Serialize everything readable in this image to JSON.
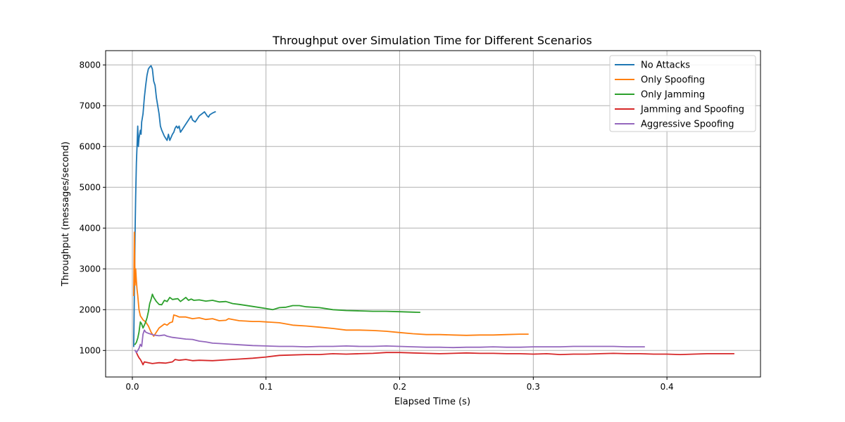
{
  "chart_data": {
    "type": "line",
    "title": "Throughput over Simulation Time for Different Scenarios",
    "xlabel": "Elapsed Time (s)",
    "ylabel": "Throughput (messages/second)",
    "xlim": [
      -0.02,
      0.47
    ],
    "ylim": [
      350,
      8350
    ],
    "xticks": [
      0.0,
      0.1,
      0.2,
      0.3,
      0.4
    ],
    "xtick_labels": [
      "0.0",
      "0.1",
      "0.2",
      "0.3",
      "0.4"
    ],
    "yticks": [
      1000,
      2000,
      3000,
      4000,
      5000,
      6000,
      7000,
      8000
    ],
    "ytick_labels": [
      "1000",
      "2000",
      "3000",
      "4000",
      "5000",
      "6000",
      "7000",
      "8000"
    ],
    "grid": true,
    "legend_position": "top-right",
    "series": [
      {
        "name": "No Attacks",
        "color": "#1f77b4",
        "points": [
          [
            0.001,
            1100
          ],
          [
            0.0015,
            2400
          ],
          [
            0.002,
            3850
          ],
          [
            0.0025,
            4800
          ],
          [
            0.003,
            5600
          ],
          [
            0.0035,
            6000
          ],
          [
            0.004,
            6500
          ],
          [
            0.0045,
            6000
          ],
          [
            0.005,
            6200
          ],
          [
            0.006,
            6400
          ],
          [
            0.0065,
            6300
          ],
          [
            0.007,
            6600
          ],
          [
            0.008,
            6800
          ],
          [
            0.009,
            7200
          ],
          [
            0.01,
            7500
          ],
          [
            0.011,
            7750
          ],
          [
            0.012,
            7900
          ],
          [
            0.013,
            7950
          ],
          [
            0.014,
            7980
          ],
          [
            0.015,
            7900
          ],
          [
            0.016,
            7600
          ],
          [
            0.017,
            7500
          ],
          [
            0.018,
            7200
          ],
          [
            0.019,
            7000
          ],
          [
            0.02,
            6800
          ],
          [
            0.021,
            6500
          ],
          [
            0.022,
            6400
          ],
          [
            0.024,
            6250
          ],
          [
            0.025,
            6200
          ],
          [
            0.026,
            6150
          ],
          [
            0.027,
            6300
          ],
          [
            0.028,
            6150
          ],
          [
            0.03,
            6300
          ],
          [
            0.031,
            6350
          ],
          [
            0.032,
            6450
          ],
          [
            0.033,
            6500
          ],
          [
            0.034,
            6450
          ],
          [
            0.035,
            6500
          ],
          [
            0.036,
            6350
          ],
          [
            0.038,
            6450
          ],
          [
            0.04,
            6550
          ],
          [
            0.042,
            6650
          ],
          [
            0.044,
            6750
          ],
          [
            0.045,
            6650
          ],
          [
            0.047,
            6600
          ],
          [
            0.049,
            6700
          ],
          [
            0.05,
            6750
          ],
          [
            0.052,
            6800
          ],
          [
            0.054,
            6850
          ],
          [
            0.055,
            6800
          ],
          [
            0.056,
            6750
          ],
          [
            0.057,
            6720
          ],
          [
            0.058,
            6780
          ],
          [
            0.06,
            6820
          ],
          [
            0.062,
            6850
          ]
        ]
      },
      {
        "name": "Only Spoofing",
        "color": "#ff7f0e",
        "points": [
          [
            0.001,
            2350
          ],
          [
            0.0015,
            3900
          ],
          [
            0.002,
            2600
          ],
          [
            0.0025,
            3000
          ],
          [
            0.003,
            2700
          ],
          [
            0.0035,
            2500
          ],
          [
            0.004,
            2350
          ],
          [
            0.005,
            2000
          ],
          [
            0.006,
            1850
          ],
          [
            0.007,
            1800
          ],
          [
            0.008,
            1750
          ],
          [
            0.01,
            1700
          ],
          [
            0.012,
            1600
          ],
          [
            0.014,
            1450
          ],
          [
            0.016,
            1350
          ],
          [
            0.018,
            1450
          ],
          [
            0.02,
            1550
          ],
          [
            0.022,
            1600
          ],
          [
            0.024,
            1650
          ],
          [
            0.026,
            1620
          ],
          [
            0.028,
            1680
          ],
          [
            0.03,
            1700
          ],
          [
            0.031,
            1870
          ],
          [
            0.033,
            1850
          ],
          [
            0.035,
            1820
          ],
          [
            0.04,
            1820
          ],
          [
            0.045,
            1780
          ],
          [
            0.05,
            1800
          ],
          [
            0.055,
            1760
          ],
          [
            0.06,
            1780
          ],
          [
            0.065,
            1730
          ],
          [
            0.07,
            1740
          ],
          [
            0.072,
            1780
          ],
          [
            0.075,
            1760
          ],
          [
            0.08,
            1730
          ],
          [
            0.085,
            1720
          ],
          [
            0.09,
            1710
          ],
          [
            0.095,
            1710
          ],
          [
            0.1,
            1700
          ],
          [
            0.11,
            1680
          ],
          [
            0.12,
            1620
          ],
          [
            0.13,
            1600
          ],
          [
            0.14,
            1570
          ],
          [
            0.15,
            1540
          ],
          [
            0.16,
            1500
          ],
          [
            0.17,
            1500
          ],
          [
            0.18,
            1490
          ],
          [
            0.19,
            1470
          ],
          [
            0.2,
            1440
          ],
          [
            0.21,
            1410
          ],
          [
            0.22,
            1390
          ],
          [
            0.23,
            1390
          ],
          [
            0.24,
            1380
          ],
          [
            0.25,
            1370
          ],
          [
            0.26,
            1380
          ],
          [
            0.27,
            1380
          ],
          [
            0.28,
            1390
          ],
          [
            0.29,
            1400
          ],
          [
            0.296,
            1400
          ]
        ]
      },
      {
        "name": "Only Jamming",
        "color": "#2ca02c",
        "points": [
          [
            0.002,
            1150
          ],
          [
            0.003,
            1200
          ],
          [
            0.004,
            1300
          ],
          [
            0.005,
            1450
          ],
          [
            0.006,
            1700
          ],
          [
            0.007,
            1650
          ],
          [
            0.008,
            1550
          ],
          [
            0.009,
            1620
          ],
          [
            0.01,
            1700
          ],
          [
            0.011,
            1800
          ],
          [
            0.012,
            1950
          ],
          [
            0.013,
            2150
          ],
          [
            0.014,
            2250
          ],
          [
            0.015,
            2380
          ],
          [
            0.016,
            2300
          ],
          [
            0.017,
            2250
          ],
          [
            0.018,
            2200
          ],
          [
            0.02,
            2130
          ],
          [
            0.022,
            2120
          ],
          [
            0.024,
            2230
          ],
          [
            0.026,
            2200
          ],
          [
            0.028,
            2300
          ],
          [
            0.03,
            2250
          ],
          [
            0.032,
            2260
          ],
          [
            0.034,
            2270
          ],
          [
            0.036,
            2200
          ],
          [
            0.038,
            2250
          ],
          [
            0.04,
            2300
          ],
          [
            0.042,
            2230
          ],
          [
            0.044,
            2260
          ],
          [
            0.046,
            2230
          ],
          [
            0.05,
            2240
          ],
          [
            0.055,
            2210
          ],
          [
            0.06,
            2230
          ],
          [
            0.065,
            2190
          ],
          [
            0.07,
            2200
          ],
          [
            0.075,
            2150
          ],
          [
            0.08,
            2130
          ],
          [
            0.09,
            2080
          ],
          [
            0.1,
            2030
          ],
          [
            0.105,
            2000
          ],
          [
            0.11,
            2050
          ],
          [
            0.115,
            2060
          ],
          [
            0.12,
            2100
          ],
          [
            0.125,
            2100
          ],
          [
            0.13,
            2070
          ],
          [
            0.14,
            2050
          ],
          [
            0.15,
            2000
          ],
          [
            0.16,
            1980
          ],
          [
            0.17,
            1970
          ],
          [
            0.18,
            1960
          ],
          [
            0.19,
            1960
          ],
          [
            0.2,
            1950
          ],
          [
            0.21,
            1940
          ],
          [
            0.215,
            1935
          ]
        ]
      },
      {
        "name": "Jamming and Spoofing",
        "color": "#d62728",
        "points": [
          [
            0.003,
            950
          ],
          [
            0.004,
            880
          ],
          [
            0.005,
            820
          ],
          [
            0.006,
            780
          ],
          [
            0.007,
            720
          ],
          [
            0.008,
            650
          ],
          [
            0.009,
            720
          ],
          [
            0.012,
            700
          ],
          [
            0.015,
            680
          ],
          [
            0.02,
            700
          ],
          [
            0.025,
            690
          ],
          [
            0.03,
            720
          ],
          [
            0.032,
            780
          ],
          [
            0.035,
            760
          ],
          [
            0.04,
            780
          ],
          [
            0.045,
            750
          ],
          [
            0.05,
            760
          ],
          [
            0.06,
            750
          ],
          [
            0.07,
            770
          ],
          [
            0.08,
            790
          ],
          [
            0.09,
            810
          ],
          [
            0.1,
            840
          ],
          [
            0.11,
            880
          ],
          [
            0.12,
            890
          ],
          [
            0.13,
            900
          ],
          [
            0.14,
            900
          ],
          [
            0.15,
            920
          ],
          [
            0.16,
            910
          ],
          [
            0.17,
            920
          ],
          [
            0.18,
            930
          ],
          [
            0.19,
            950
          ],
          [
            0.2,
            950
          ],
          [
            0.21,
            940
          ],
          [
            0.22,
            930
          ],
          [
            0.23,
            920
          ],
          [
            0.24,
            930
          ],
          [
            0.25,
            940
          ],
          [
            0.26,
            930
          ],
          [
            0.27,
            930
          ],
          [
            0.28,
            920
          ],
          [
            0.29,
            920
          ],
          [
            0.3,
            910
          ],
          [
            0.31,
            920
          ],
          [
            0.32,
            900
          ],
          [
            0.33,
            910
          ],
          [
            0.34,
            910
          ],
          [
            0.35,
            920
          ],
          [
            0.36,
            930
          ],
          [
            0.37,
            920
          ],
          [
            0.38,
            920
          ],
          [
            0.39,
            910
          ],
          [
            0.4,
            910
          ],
          [
            0.41,
            900
          ],
          [
            0.42,
            910
          ],
          [
            0.43,
            920
          ],
          [
            0.44,
            920
          ],
          [
            0.45,
            920
          ]
        ]
      },
      {
        "name": "Aggressive Spoofing",
        "color": "#9467bd",
        "points": [
          [
            0.002,
            1000
          ],
          [
            0.003,
            950
          ],
          [
            0.004,
            1000
          ],
          [
            0.005,
            1050
          ],
          [
            0.006,
            1150
          ],
          [
            0.007,
            1100
          ],
          [
            0.008,
            1400
          ],
          [
            0.009,
            1500
          ],
          [
            0.01,
            1450
          ],
          [
            0.012,
            1420
          ],
          [
            0.014,
            1400
          ],
          [
            0.016,
            1380
          ],
          [
            0.018,
            1370
          ],
          [
            0.02,
            1360
          ],
          [
            0.022,
            1370
          ],
          [
            0.024,
            1380
          ],
          [
            0.026,
            1350
          ],
          [
            0.03,
            1320
          ],
          [
            0.035,
            1300
          ],
          [
            0.04,
            1280
          ],
          [
            0.045,
            1270
          ],
          [
            0.05,
            1230
          ],
          [
            0.055,
            1210
          ],
          [
            0.06,
            1180
          ],
          [
            0.065,
            1170
          ],
          [
            0.07,
            1160
          ],
          [
            0.08,
            1140
          ],
          [
            0.09,
            1120
          ],
          [
            0.1,
            1110
          ],
          [
            0.11,
            1100
          ],
          [
            0.12,
            1100
          ],
          [
            0.13,
            1090
          ],
          [
            0.14,
            1100
          ],
          [
            0.15,
            1100
          ],
          [
            0.16,
            1110
          ],
          [
            0.17,
            1100
          ],
          [
            0.18,
            1100
          ],
          [
            0.19,
            1110
          ],
          [
            0.2,
            1100
          ],
          [
            0.21,
            1090
          ],
          [
            0.22,
            1080
          ],
          [
            0.23,
            1080
          ],
          [
            0.24,
            1070
          ],
          [
            0.25,
            1080
          ],
          [
            0.26,
            1080
          ],
          [
            0.27,
            1090
          ],
          [
            0.28,
            1080
          ],
          [
            0.29,
            1080
          ],
          [
            0.3,
            1090
          ],
          [
            0.31,
            1090
          ],
          [
            0.32,
            1090
          ],
          [
            0.33,
            1100
          ],
          [
            0.34,
            1100
          ],
          [
            0.35,
            1100
          ],
          [
            0.36,
            1100
          ],
          [
            0.37,
            1090
          ],
          [
            0.38,
            1090
          ],
          [
            0.383,
            1090
          ]
        ]
      }
    ]
  }
}
